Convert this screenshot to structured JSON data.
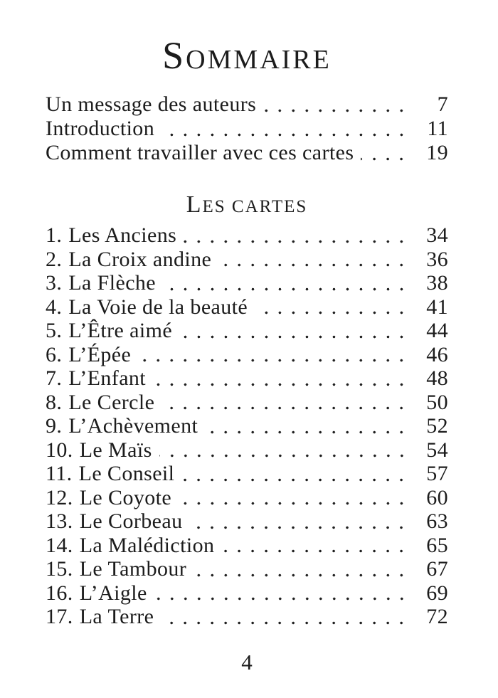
{
  "title": {
    "initial": "S",
    "rest": "OMMAIRE"
  },
  "front_matter": [
    {
      "label": "Un message des auteurs",
      "page": "7"
    },
    {
      "label": "Introduction",
      "page": "11"
    },
    {
      "label": "Comment travailler avec ces cartes",
      "page": "19"
    }
  ],
  "section_heading": {
    "initial": "L",
    "rest": "ES CARTES"
  },
  "cards": [
    {
      "num": "1.",
      "label": "Les Anciens",
      "page": "34"
    },
    {
      "num": "2.",
      "label": "La Croix andine",
      "page": "36"
    },
    {
      "num": "3.",
      "label": "La Flèche",
      "page": "38"
    },
    {
      "num": "4.",
      "label": "La Voie de la beauté",
      "page": "41"
    },
    {
      "num": "5.",
      "label": "L’Être aimé",
      "page": "44"
    },
    {
      "num": "6.",
      "label": "L’Épée",
      "page": "46"
    },
    {
      "num": "7.",
      "label": "L’Enfant",
      "page": "48"
    },
    {
      "num": "8.",
      "label": "Le Cercle",
      "page": "50"
    },
    {
      "num": "9.",
      "label": "L’Achèvement",
      "page": "52"
    },
    {
      "num": "10.",
      "label": "Le Maïs",
      "page": "54"
    },
    {
      "num": "11.",
      "label": "Le Conseil",
      "page": "57"
    },
    {
      "num": "12.",
      "label": "Le Coyote",
      "page": "60"
    },
    {
      "num": "13.",
      "label": "Le Corbeau",
      "page": "63"
    },
    {
      "num": "14.",
      "label": "La Malédiction",
      "page": "65"
    },
    {
      "num": "15.",
      "label": "Le Tambour",
      "page": "67"
    },
    {
      "num": "16.",
      "label": "L’Aigle",
      "page": "69"
    },
    {
      "num": "17.",
      "label": "La Terre",
      "page": "72"
    }
  ],
  "footer": {
    "page_number": "4"
  },
  "colors": {
    "background": "#ffffff",
    "text": "#1c1c1c"
  }
}
